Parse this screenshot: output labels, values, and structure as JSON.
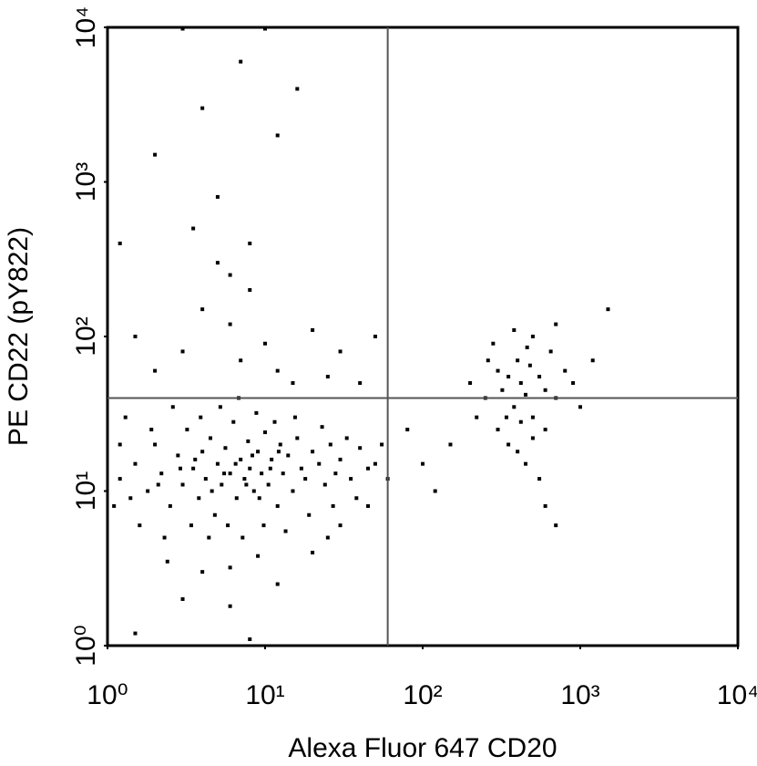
{
  "chart_data": {
    "type": "scatter",
    "x_label": "Alexa Fluor 647 CD20",
    "y_label": "PE CD22 (pY822)",
    "xscale": "log",
    "yscale": "log",
    "xlim": [
      1,
      10000
    ],
    "ylim": [
      1,
      10000
    ],
    "xticks": [
      {
        "value": 1,
        "label": "10⁰"
      },
      {
        "value": 10,
        "label": "10¹"
      },
      {
        "value": 100,
        "label": "10²"
      },
      {
        "value": 1000,
        "label": "10³"
      },
      {
        "value": 10000,
        "label": "10⁴"
      }
    ],
    "yticks": [
      {
        "value": 1,
        "label": "10⁰"
      },
      {
        "value": 10,
        "label": "10¹"
      },
      {
        "value": 100,
        "label": "10²"
      },
      {
        "value": 1000,
        "label": "10³"
      },
      {
        "value": 10000,
        "label": "10⁴"
      }
    ],
    "quadrant_x": 60,
    "quadrant_y": 40,
    "color": "#000000",
    "x": [
      1.2,
      1.5,
      1.8,
      2,
      2.2,
      2.5,
      2.8,
      3,
      3.2,
      3.5,
      3.8,
      4,
      4.2,
      4.5,
      4.8,
      5,
      5.3,
      5.6,
      6,
      6.3,
      6.6,
      7,
      7.4,
      7.8,
      8,
      8.5,
      9,
      9.5,
      10,
      10.5,
      11,
      12,
      12.5,
      13,
      14,
      15,
      16,
      17,
      18,
      20,
      22,
      24,
      26,
      28,
      30,
      35,
      40,
      45,
      1.3,
      1.6,
      1.9,
      2.3,
      2.6,
      3.4,
      3.9,
      4.4,
      5.2,
      5.8,
      6.8,
      7.2,
      8.8,
      9.8,
      11.5,
      13.5,
      15.5,
      19,
      23,
      27,
      33,
      38,
      50,
      60,
      1.4,
      2.1,
      2.9,
      3.6,
      4.6,
      5.5,
      6.5,
      7.6,
      8.3,
      9.2,
      10.8,
      12.2,
      1.2,
      1.1,
      2.4,
      4,
      6,
      9,
      3,
      6,
      12,
      1.5,
      8,
      20,
      25,
      30,
      45,
      55,
      1.5,
      2,
      3,
      4,
      5,
      6,
      7,
      8,
      10,
      12,
      15,
      20,
      25,
      3.5,
      5,
      6,
      8,
      2,
      4,
      7,
      10,
      3,
      16,
      12,
      1.2,
      30,
      40,
      50,
      200,
      250,
      300,
      320,
      350,
      380,
      400,
      420,
      450,
      480,
      500,
      550,
      600,
      650,
      700,
      800,
      900,
      1000,
      300,
      350,
      400,
      450,
      500,
      600,
      280,
      380,
      500,
      700,
      1200,
      1500,
      220,
      260,
      340,
      420,
      460,
      550,
      600,
      700,
      150,
      100,
      80,
      120
    ],
    "y": [
      12,
      15,
      10,
      20,
      13,
      8,
      17,
      11,
      25,
      14,
      9,
      18,
      12,
      22,
      7,
      15,
      11,
      19,
      13,
      28,
      9,
      16,
      12,
      21,
      14,
      10,
      18,
      13,
      24,
      11,
      16,
      8,
      20,
      13,
      17,
      10,
      22,
      14,
      12,
      18,
      15,
      11,
      20,
      13,
      16,
      12,
      19,
      14,
      30,
      6,
      25,
      5,
      35,
      6,
      30,
      5,
      35,
      6,
      40,
      5,
      32,
      6,
      28,
      5.5,
      30,
      7,
      26,
      8,
      22,
      9,
      15,
      12,
      9,
      11,
      14,
      16,
      10,
      13,
      15,
      11,
      17,
      9,
      14,
      18,
      20,
      8,
      3.5,
      3,
      3.2,
      3.8,
      2,
      1.8,
      2.5,
      1.2,
      1.1,
      4,
      5,
      6,
      8,
      20,
      100,
      60,
      80,
      150,
      300,
      120,
      70,
      200,
      90,
      60,
      50,
      110,
      55,
      500,
      800,
      250,
      400,
      1500,
      3000,
      6000,
      9800,
      9800,
      4000,
      2000,
      400,
      80,
      50,
      100,
      50,
      40,
      60,
      45,
      55,
      35,
      70,
      50,
      42,
      65,
      30,
      55,
      45,
      80,
      40,
      60,
      50,
      35,
      25,
      20,
      18,
      15,
      22,
      25,
      90,
      110,
      100,
      120,
      70,
      150,
      30,
      70,
      30,
      28,
      85,
      12,
      8,
      6,
      20,
      15,
      25,
      10
    ]
  }
}
